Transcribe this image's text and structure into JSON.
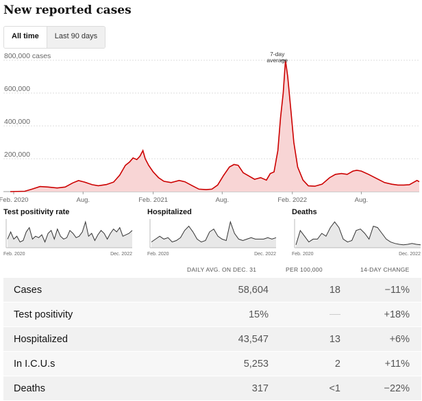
{
  "page": {
    "title": "New reported cases"
  },
  "toggle": {
    "options": [
      "All time",
      "Last 90 days"
    ],
    "selected": "All time"
  },
  "chart_data": [
    {
      "type": "area",
      "title": "New reported cases",
      "ylabel_unit": "cases",
      "ylim": [
        0,
        800000
      ],
      "yticks": [
        200000,
        400000,
        600000,
        800000
      ],
      "ytick_labels": [
        "200,000",
        "400,000",
        "600,000",
        "800,000 cases"
      ],
      "xtick_labels": [
        "Feb. 2020",
        "Aug.",
        "Feb. 2021",
        "Aug.",
        "Feb. 2022",
        "Aug."
      ],
      "xtick_dates": [
        "2020-02-01",
        "2020-08-01",
        "2021-02-01",
        "2021-08-01",
        "2022-02-01",
        "2022-08-01"
      ],
      "xrange": [
        "2020-01-23",
        "2022-12-31"
      ],
      "annotation": {
        "text": [
          "7-day",
          "average"
        ],
        "date": "2022-01-14"
      },
      "grid": true,
      "color": "#cc0000",
      "fill": "#f8d5d5",
      "series": [
        {
          "x": [
            "2020-01-23",
            "2020-03-01",
            "2020-03-20",
            "2020-04-10",
            "2020-05-01",
            "2020-05-25",
            "2020-06-15",
            "2020-07-05",
            "2020-07-20",
            "2020-08-05",
            "2020-08-25",
            "2020-09-10",
            "2020-10-01",
            "2020-10-20",
            "2020-11-05",
            "2020-11-20",
            "2020-12-01",
            "2020-12-10",
            "2020-12-20",
            "2020-12-28",
            "2021-01-05",
            "2021-01-11",
            "2021-01-20",
            "2021-02-01",
            "2021-02-15",
            "2021-03-01",
            "2021-03-20",
            "2021-04-10",
            "2021-04-25",
            "2021-05-15",
            "2021-06-01",
            "2021-06-20",
            "2021-07-05",
            "2021-07-20",
            "2021-08-05",
            "2021-08-20",
            "2021-09-01",
            "2021-09-12",
            "2021-09-25",
            "2021-10-10",
            "2021-10-25",
            "2021-11-10",
            "2021-11-25",
            "2021-12-05",
            "2021-12-15",
            "2021-12-25",
            "2022-01-01",
            "2022-01-08",
            "2022-01-14",
            "2022-01-20",
            "2022-01-28",
            "2022-02-05",
            "2022-02-15",
            "2022-03-01",
            "2022-03-15",
            "2022-04-01",
            "2022-04-20",
            "2022-05-10",
            "2022-05-25",
            "2022-06-10",
            "2022-06-25",
            "2022-07-10",
            "2022-07-20",
            "2022-08-01",
            "2022-08-20",
            "2022-09-10",
            "2022-10-01",
            "2022-10-20",
            "2022-11-05",
            "2022-11-20",
            "2022-12-05",
            "2022-12-15",
            "2022-12-25",
            "2022-12-31"
          ],
          "y": [
            0,
            2000,
            15000,
            31000,
            28000,
            22000,
            28000,
            53000,
            67000,
            58000,
            42000,
            36000,
            43000,
            58000,
            100000,
            160000,
            180000,
            205000,
            195000,
            215000,
            250000,
            200000,
            160000,
            120000,
            85000,
            63000,
            55000,
            68000,
            60000,
            35000,
            15000,
            12000,
            15000,
            40000,
            100000,
            150000,
            165000,
            160000,
            115000,
            95000,
            75000,
            85000,
            70000,
            110000,
            120000,
            250000,
            450000,
            600000,
            800000,
            700000,
            500000,
            300000,
            150000,
            70000,
            35000,
            33000,
            45000,
            85000,
            105000,
            110000,
            105000,
            125000,
            130000,
            125000,
            105000,
            80000,
            55000,
            45000,
            40000,
            40000,
            42000,
            55000,
            68000,
            60000
          ]
        }
      ]
    },
    {
      "type": "area",
      "title": "Test positivity rate",
      "xtick_labels": [
        "Feb. 2020",
        "Dec. 2022"
      ],
      "series": [
        {
          "values": [
            0.3,
            0.55,
            0.3,
            0.4,
            0.2,
            0.25,
            0.55,
            0.7,
            0.3,
            0.4,
            0.35,
            0.45,
            0.2,
            0.5,
            0.6,
            0.3,
            0.65,
            0.4,
            0.3,
            0.35,
            0.6,
            0.5,
            0.35,
            0.4,
            0.55,
            0.9,
            0.4,
            0.5,
            0.25,
            0.45,
            0.6,
            0.5,
            0.3,
            0.5,
            0.65,
            0.55,
            0.7,
            0.4,
            0.45,
            0.5,
            0.6
          ]
        }
      ]
    },
    {
      "type": "area",
      "title": "Hospitalized",
      "xtick_labels": [
        "Feb. 2020",
        "Dec. 2022"
      ],
      "series": [
        {
          "values": [
            0.2,
            0.3,
            0.4,
            0.3,
            0.35,
            0.2,
            0.25,
            0.35,
            0.6,
            0.75,
            0.55,
            0.3,
            0.2,
            0.25,
            0.55,
            0.65,
            0.4,
            0.3,
            0.25,
            0.9,
            0.5,
            0.3,
            0.25,
            0.3,
            0.35,
            0.3,
            0.3,
            0.3,
            0.35,
            0.3,
            0.35
          ]
        }
      ]
    },
    {
      "type": "area",
      "title": "Deaths",
      "xtick_labels": [
        "Feb. 2020",
        "Dec. 2022"
      ],
      "series": [
        {
          "values": [
            0.1,
            0.6,
            0.4,
            0.2,
            0.3,
            0.3,
            0.5,
            0.4,
            0.7,
            0.9,
            0.7,
            0.3,
            0.2,
            0.25,
            0.6,
            0.65,
            0.5,
            0.3,
            0.75,
            0.7,
            0.5,
            0.3,
            0.2,
            0.15,
            0.12,
            0.1,
            0.12,
            0.15,
            0.12,
            0.1
          ]
        }
      ]
    }
  ],
  "table": {
    "headers": [
      "DAILY AVG. ON DEC. 31",
      "PER 100,000",
      "14-DAY CHANGE"
    ],
    "rows": [
      {
        "name": "Cases",
        "avg": "58,604",
        "per100k": "18",
        "change": "−11%"
      },
      {
        "name": "Test positivity",
        "avg": "15%",
        "per100k": "",
        "change": "+18%"
      },
      {
        "name": "Hospitalized",
        "avg": "43,547",
        "per100k": "13",
        "change": "+6%"
      },
      {
        "name": "In I.C.U.s",
        "avg": "5,253",
        "per100k": "2",
        "change": "+11%"
      },
      {
        "name": "Deaths",
        "avg": "317",
        "per100k": "<1",
        "change": "−22%"
      }
    ]
  }
}
